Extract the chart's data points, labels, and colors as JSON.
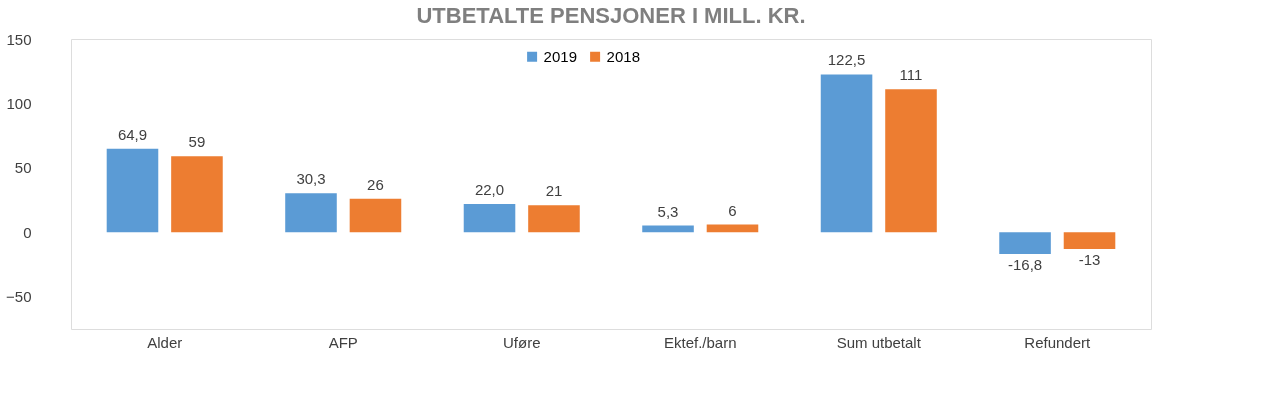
{
  "chart_data": {
    "type": "bar",
    "title": "UTBETALTE PENSJONER I MILL. KR.",
    "categories": [
      "Alder",
      "AFP",
      "Uføre",
      "Ektef./barn",
      "Sum utbetalt",
      "Refundert"
    ],
    "series": [
      {
        "name": "2019",
        "color": "#5b9bd5",
        "values": [
          64.9,
          30.3,
          22.0,
          5.3,
          122.5,
          -16.8
        ],
        "value_labels": [
          "64,9",
          "30,3",
          "22,0",
          "5,3",
          "122,5",
          "-16,8"
        ]
      },
      {
        "name": "2018",
        "color": "#ed7d31",
        "values": [
          59,
          26,
          21,
          6,
          111,
          -13
        ],
        "value_labels": [
          "59",
          "26",
          "21",
          "6",
          "111",
          "-13"
        ]
      }
    ],
    "ylim": [
      -75,
      150
    ],
    "yticks": [
      -50,
      0,
      50,
      100,
      150
    ],
    "grid": false,
    "legend": "top"
  }
}
